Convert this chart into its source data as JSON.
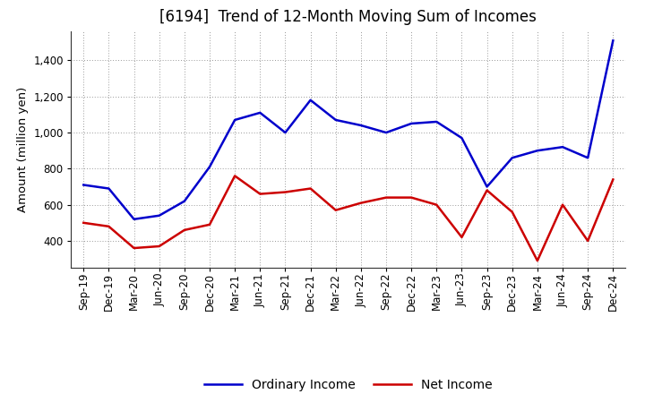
{
  "title": "[6194]  Trend of 12-Month Moving Sum of Incomes",
  "ylabel": "Amount (million yen)",
  "x_labels": [
    "Sep-19",
    "Dec-19",
    "Mar-20",
    "Jun-20",
    "Sep-20",
    "Dec-20",
    "Mar-21",
    "Jun-21",
    "Sep-21",
    "Dec-21",
    "Mar-22",
    "Jun-22",
    "Sep-22",
    "Dec-22",
    "Mar-23",
    "Jun-23",
    "Sep-23",
    "Dec-23",
    "Mar-24",
    "Jun-24",
    "Sep-24",
    "Dec-24"
  ],
  "ordinary_y": [
    710,
    690,
    520,
    540,
    620,
    810,
    1070,
    1110,
    1000,
    1180,
    1070,
    1040,
    1000,
    1050,
    1060,
    970,
    700,
    860,
    900,
    920,
    860,
    1510
  ],
  "net_y": [
    500,
    480,
    360,
    370,
    460,
    490,
    760,
    660,
    670,
    690,
    570,
    610,
    640,
    640,
    600,
    420,
    680,
    560,
    290,
    600,
    400,
    740
  ],
  "ordinary_color": "#0000CC",
  "net_color": "#CC0000",
  "ylim_min": 250,
  "ylim_max": 1560,
  "yticks": [
    400,
    600,
    800,
    1000,
    1200,
    1400
  ],
  "background_color": "#FFFFFF",
  "grid_color": "#999999",
  "title_fontsize": 12,
  "legend_fontsize": 10,
  "tick_fontsize": 8.5
}
